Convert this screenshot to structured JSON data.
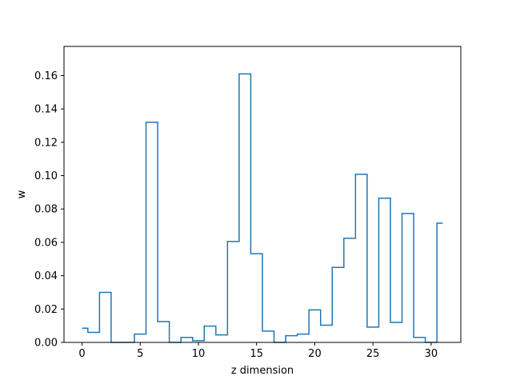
{
  "chart_data": {
    "type": "line",
    "drawstyle": "steps-mid",
    "xlabel": "z dimension",
    "ylabel": "w",
    "xlim": [
      -1.55,
      32.55
    ],
    "ylim": [
      0,
      0.1775
    ],
    "xticks": [
      0,
      5,
      10,
      15,
      20,
      25,
      30
    ],
    "xtick_labels": [
      "0",
      "5",
      "10",
      "15",
      "20",
      "25",
      "30"
    ],
    "yticks": [
      0.0,
      0.02,
      0.04,
      0.06,
      0.08,
      0.1,
      0.12,
      0.14,
      0.16
    ],
    "ytick_labels": [
      "0.00",
      "0.02",
      "0.04",
      "0.06",
      "0.08",
      "0.10",
      "0.12",
      "0.14",
      "0.16"
    ],
    "grid": false,
    "series": [
      {
        "color": "#1f77b4",
        "x": [
          0,
          1,
          2,
          3,
          4,
          5,
          6,
          7,
          8,
          9,
          10,
          11,
          12,
          13,
          14,
          15,
          16,
          17,
          18,
          19,
          20,
          21,
          22,
          23,
          24,
          25,
          26,
          27,
          28,
          29,
          30,
          31
        ],
        "values": [
          0.0085,
          0.006,
          0.03,
          0.0,
          0.0,
          0.005,
          0.132,
          0.0125,
          0.0,
          0.003,
          0.001,
          0.0098,
          0.0045,
          0.0605,
          0.161,
          0.0532,
          0.0068,
          0.0,
          0.004,
          0.005,
          0.0195,
          0.0103,
          0.045,
          0.0624,
          0.1008,
          0.0092,
          0.0865,
          0.012,
          0.0773,
          0.003,
          0.0,
          0.0715
        ]
      }
    ]
  }
}
